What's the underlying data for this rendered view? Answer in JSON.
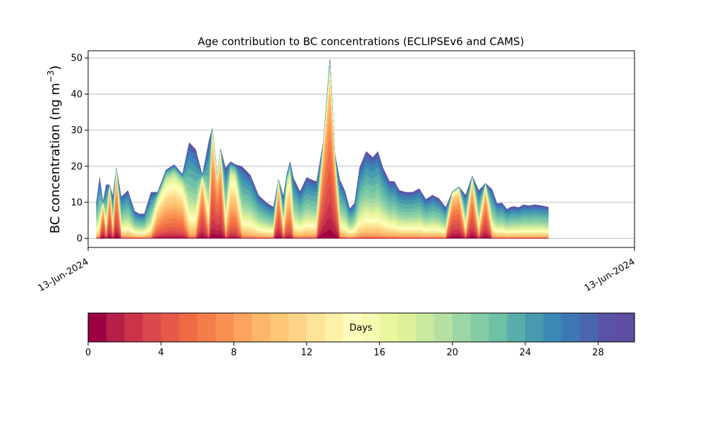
{
  "chart_data": {
    "type": "area",
    "stacked": true,
    "title": "Age contribution to BC concentrations (ECLIPSEv6 and CAMS)",
    "ylabel": "BC concentration (ng m",
    "ylabel_sup": "−3",
    "ylabel_close": ")",
    "ylim": [
      -2.5,
      52
    ],
    "yticks": [
      0,
      10,
      20,
      30,
      40,
      50
    ],
    "grid": "horizontal",
    "x_tick_labels": [
      "13-Jun-2024",
      "13-Jun-2024"
    ],
    "x": [
      0.05,
      0.07,
      0.09,
      0.11,
      0.13,
      0.15,
      0.17,
      0.2,
      0.24,
      0.28,
      0.31,
      0.34,
      0.38,
      0.42,
      0.47,
      0.52,
      0.57,
      0.61,
      0.65,
      0.69,
      0.73,
      0.75,
      0.78,
      0.8,
      0.83,
      0.86,
      0.89,
      0.93,
      0.98,
      1.03,
      1.08,
      1.12,
      1.15,
      1.18,
      1.2,
      1.22,
      1.24,
      1.28,
      1.32,
      1.35,
      1.38,
      1.42,
      1.46,
      1.49,
      1.52,
      1.55,
      1.58,
      1.61,
      1.64,
      1.68,
      1.72,
      1.75,
      1.78,
      1.82,
      1.85,
      1.88,
      1.92,
      1.96,
      2.0,
      2.04,
      2.08,
      2.12,
      2.16,
      2.2,
      2.24,
      2.28,
      2.32,
      2.36,
      2.4,
      2.44,
      2.47,
      2.5,
      2.53,
      2.55,
      2.57,
      2.6,
      2.63,
      2.66,
      2.7,
      2.74,
      2.78
    ],
    "total": [
      10,
      17.2,
      10,
      15.2,
      14.8,
      11.8,
      19.5,
      11.7,
      13.5,
      7.7,
      6.9,
      6.9,
      13,
      12.8,
      19,
      20.5,
      17.8,
      27,
      25,
      17.5,
      27.5,
      30.5,
      17.3,
      24.8,
      19.8,
      21.3,
      20.5,
      20.2,
      17.8,
      12.1,
      10,
      8.8,
      16.3,
      11.8,
      17.8,
      21.3,
      17,
      13.2,
      17.2,
      16.5,
      16,
      26.5,
      49.7,
      23.5,
      16.5,
      13.5,
      8.3,
      10,
      20,
      24.5,
      22.8,
      24.5,
      20,
      16.1,
      16,
      13.5,
      13,
      13,
      14,
      11,
      12.2,
      11.2,
      8.7,
      13,
      14.3,
      12.2,
      17.3,
      13.5,
      15.3,
      13.8,
      9.8,
      10,
      8.2,
      8.8,
      9,
      8.7,
      9.5,
      9.2,
      9.5,
      9.2,
      8.8
    ],
    "share_patterns": [
      [
        0,
        0,
        0,
        0,
        0,
        0.01,
        0.01,
        0.02,
        0.03,
        0.05,
        0.07,
        0.1,
        0.13,
        0.16,
        0.19,
        0.22,
        0.25,
        0.29,
        0.33,
        0.37,
        0.42,
        0.48,
        0.55,
        0.63,
        0.72,
        0.8,
        0.86,
        0.91,
        0.95,
        0.97,
        0.985
      ],
      [
        0,
        0.05,
        0.12,
        0.2,
        0.3,
        0.4,
        0.5,
        0.58,
        0.66,
        0.74,
        0.8,
        0.84,
        0.87,
        0.89,
        0.905,
        0.915,
        0.925,
        0.935,
        0.945,
        0.955,
        0.96,
        0.965,
        0.97,
        0.975,
        0.98,
        0.985,
        0.99,
        0.992,
        0.995,
        0.997,
        0.999
      ],
      [
        0,
        0.01,
        0.02,
        0.04,
        0.06,
        0.08,
        0.1,
        0.12,
        0.14,
        0.17,
        0.2,
        0.24,
        0.28,
        0.33,
        0.39,
        0.45,
        0.5,
        0.55,
        0.6,
        0.66,
        0.72,
        0.77,
        0.82,
        0.86,
        0.89,
        0.92,
        0.94,
        0.96,
        0.975,
        0.985,
        0.995
      ],
      [
        0,
        0.01,
        0.03,
        0.06,
        0.1,
        0.15,
        0.21,
        0.28,
        0.34,
        0.4,
        0.46,
        0.52,
        0.58,
        0.63,
        0.68,
        0.72,
        0.76,
        0.8,
        0.83,
        0.86,
        0.88,
        0.9,
        0.92,
        0.94,
        0.955,
        0.965,
        0.975,
        0.983,
        0.99,
        0.995,
        0.999
      ],
      [
        0,
        0.04,
        0.1,
        0.18,
        0.28,
        0.38,
        0.48,
        0.57,
        0.65,
        0.72,
        0.78,
        0.83,
        0.87,
        0.9,
        0.92,
        0.935,
        0.945,
        0.955,
        0.963,
        0.97,
        0.975,
        0.98,
        0.984,
        0.988,
        0.991,
        0.994,
        0.996,
        0.997,
        0.998,
        0.999,
        1
      ]
    ],
    "sample_pattern": [
      0,
      0,
      4,
      0,
      4,
      0,
      4,
      0,
      0,
      0,
      0,
      0,
      0,
      3,
      3,
      3,
      3,
      0,
      0,
      4,
      0,
      4,
      1,
      4,
      0,
      3,
      3,
      0,
      0,
      0,
      0,
      0,
      4,
      0,
      3,
      3,
      0,
      0,
      0,
      0,
      0,
      1,
      1,
      1,
      0,
      0,
      0,
      0,
      0,
      0,
      0,
      0,
      0,
      0,
      0,
      0,
      0,
      0,
      0,
      0,
      0,
      0,
      0,
      4,
      4,
      0,
      4,
      0,
      4,
      0,
      0,
      0,
      0,
      0,
      0,
      0,
      0,
      0,
      0,
      0,
      0
    ],
    "colorbar": {
      "label": "Days",
      "ticks": [
        0,
        4,
        8,
        12,
        16,
        20,
        24,
        28
      ],
      "range": [
        0,
        30
      ],
      "colors": [
        "#9e0142",
        "#b51f48",
        "#cb334c",
        "#dc494c",
        "#e65948",
        "#ef6b44",
        "#f57d4a",
        "#f99153",
        "#fca45e",
        "#fdb768",
        "#fdc776",
        "#fed586",
        "#fee496",
        "#fff2a8",
        "#fffebe",
        "#f5fbb1",
        "#eaf79f",
        "#dcf19a",
        "#c9e99e",
        "#b4e0a2",
        "#9cd6a4",
        "#84cca5",
        "#6dc1a5",
        "#5aaea9",
        "#489bae",
        "#3a89b5",
        "#3e77b4",
        "#4965ad",
        "#5a52a4",
        "#5e4fa2"
      ]
    }
  }
}
